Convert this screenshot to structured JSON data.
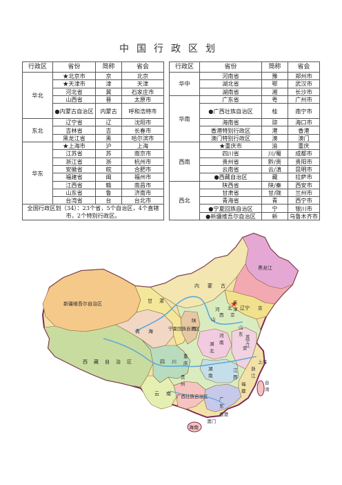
{
  "title": "中国行政区划",
  "headers": [
    "行政区",
    "省份",
    "简称",
    "省会"
  ],
  "left": {
    "regions": [
      {
        "name": "华北",
        "rows": [
          {
            "p": "★北京市",
            "a": "京",
            "c": "北京"
          },
          {
            "p": "★天津市",
            "a": "津",
            "c": "天津"
          },
          {
            "p": "河北省",
            "a": "冀",
            "c": "石家庄市"
          },
          {
            "p": "山西省",
            "a": "晋",
            "c": "太原市"
          },
          {
            "p": "●内蒙古自治区",
            "a": "内蒙古",
            "c": "呼和浩特市",
            "tall": true
          }
        ]
      },
      {
        "name": "东北",
        "rows": [
          {
            "p": "辽宁省",
            "a": "辽",
            "c": "沈阳市"
          },
          {
            "p": "吉林省",
            "a": "吉",
            "c": "长春市"
          },
          {
            "p": "黑龙江省",
            "a": "黑",
            "c": "哈尔滨市"
          }
        ]
      },
      {
        "name": "华东",
        "rows": [
          {
            "p": "★上海市",
            "a": "沪",
            "c": "上海"
          },
          {
            "p": "江苏省",
            "a": "苏",
            "c": "南京市"
          },
          {
            "p": "浙江省",
            "a": "浙",
            "c": "杭州市"
          },
          {
            "p": "安徽省",
            "a": "皖",
            "c": "合肥市"
          },
          {
            "p": "福建省",
            "a": "闽",
            "c": "福州市"
          },
          {
            "p": "江西省",
            "a": "赣",
            "c": "南昌市"
          },
          {
            "p": "山东省",
            "a": "鲁",
            "c": "济南市"
          },
          {
            "p": "台湾省",
            "a": "台",
            "c": "台北市"
          }
        ]
      }
    ],
    "note": "全国行政区划（34）：23个省，5个自治区，4个直辖市，2个特别行政区。"
  },
  "right": {
    "regions": [
      {
        "name": "华中",
        "rows": [
          {
            "p": "河南省",
            "a": "豫",
            "c": "郑州市"
          },
          {
            "p": "湖北省",
            "a": "鄂",
            "c": "武汉市"
          },
          {
            "p": "湖南省",
            "a": "湘",
            "c": "长沙市"
          }
        ]
      },
      {
        "name": "华南",
        "rows": [
          {
            "p": "广东省",
            "a": "粤",
            "c": "广州市"
          },
          {
            "p": "●广西壮族自治区",
            "a": "桂",
            "c": "南宁市",
            "tall": true
          },
          {
            "p": "海南省",
            "a": "琼",
            "c": "海口市"
          },
          {
            "p": "香港特别行政区",
            "a": "港",
            "c": "香港"
          },
          {
            "p": "澳门特别行政区",
            "a": "澳",
            "c": "澳门"
          }
        ]
      },
      {
        "name": "西南",
        "rows": [
          {
            "p": "★重庆市",
            "a": "渝",
            "c": "重庆"
          },
          {
            "p": "四川省",
            "a": "川/蜀",
            "c": "成都市"
          },
          {
            "p": "贵州省",
            "a": "黔/贵",
            "c": "贵阳市"
          },
          {
            "p": "云南省",
            "a": "云/滇",
            "c": "昆明市"
          },
          {
            "p": "●西藏自治区",
            "a": "藏",
            "c": "拉萨市"
          }
        ]
      },
      {
        "name": "西北",
        "rows": [
          {
            "p": "陕西省",
            "a": "陕/秦",
            "c": "西安市"
          },
          {
            "p": "甘肃省",
            "a": "甘/陇",
            "c": "兰州市"
          },
          {
            "p": "青海省",
            "a": "青",
            "c": "西宁市"
          },
          {
            "p": "●宁夏回族自治区",
            "a": "宁",
            "c": "银川市"
          },
          {
            "p": "●新疆维吾尔自治区",
            "a": "新",
            "c": "乌鲁木齐市"
          }
        ]
      }
    ]
  },
  "map": {
    "labels": {
      "heilongjiang": "黑龙江",
      "xinjiang": "新疆维吾尔自治区",
      "xizang": "西藏自治区",
      "qinghai": "青海",
      "gansu": "甘肃",
      "neimenggu": "内蒙古",
      "ningxia": "宁夏回族自治区",
      "sichuan": "四川",
      "yunnan": "云南",
      "guangxi": "广西壮族自治区",
      "hainan": "海南",
      "liaoning": "辽宁",
      "shanghai": "上海",
      "xianggang": "香港",
      "aomen": "澳门"
    },
    "small_chars": [
      "吉",
      "河",
      "山",
      "北",
      "京",
      "西",
      "陕",
      "西",
      "湖",
      "北",
      "安",
      "湖",
      "南",
      "江",
      "西",
      "浙",
      "江",
      "福",
      "建",
      "广",
      "东",
      "台",
      "湾",
      "重",
      "庆",
      "贵",
      "州",
      "河",
      "南",
      "天",
      "津",
      "山",
      "东",
      "宁",
      "苏",
      "江"
    ],
    "colors": {
      "xinjiang": "#f4c98a",
      "xizang": "#c8dca0",
      "qinghai": "#f1d7c4",
      "gansu": "#f4e79a",
      "neimenggu": "#f3e6b0",
      "heilongjiang": "#e5a8d4",
      "jilin": "#f2a9b2",
      "liaoning": "#f1e08c",
      "sichuan": "#b9dcbe",
      "yunnan": "#e6efb2",
      "guangxi": "#f6c4c0",
      "guangdong": "#c6c9ea",
      "sea": "#ffffff",
      "river": "#5da8d8",
      "border": "#7a2a5a"
    }
  }
}
